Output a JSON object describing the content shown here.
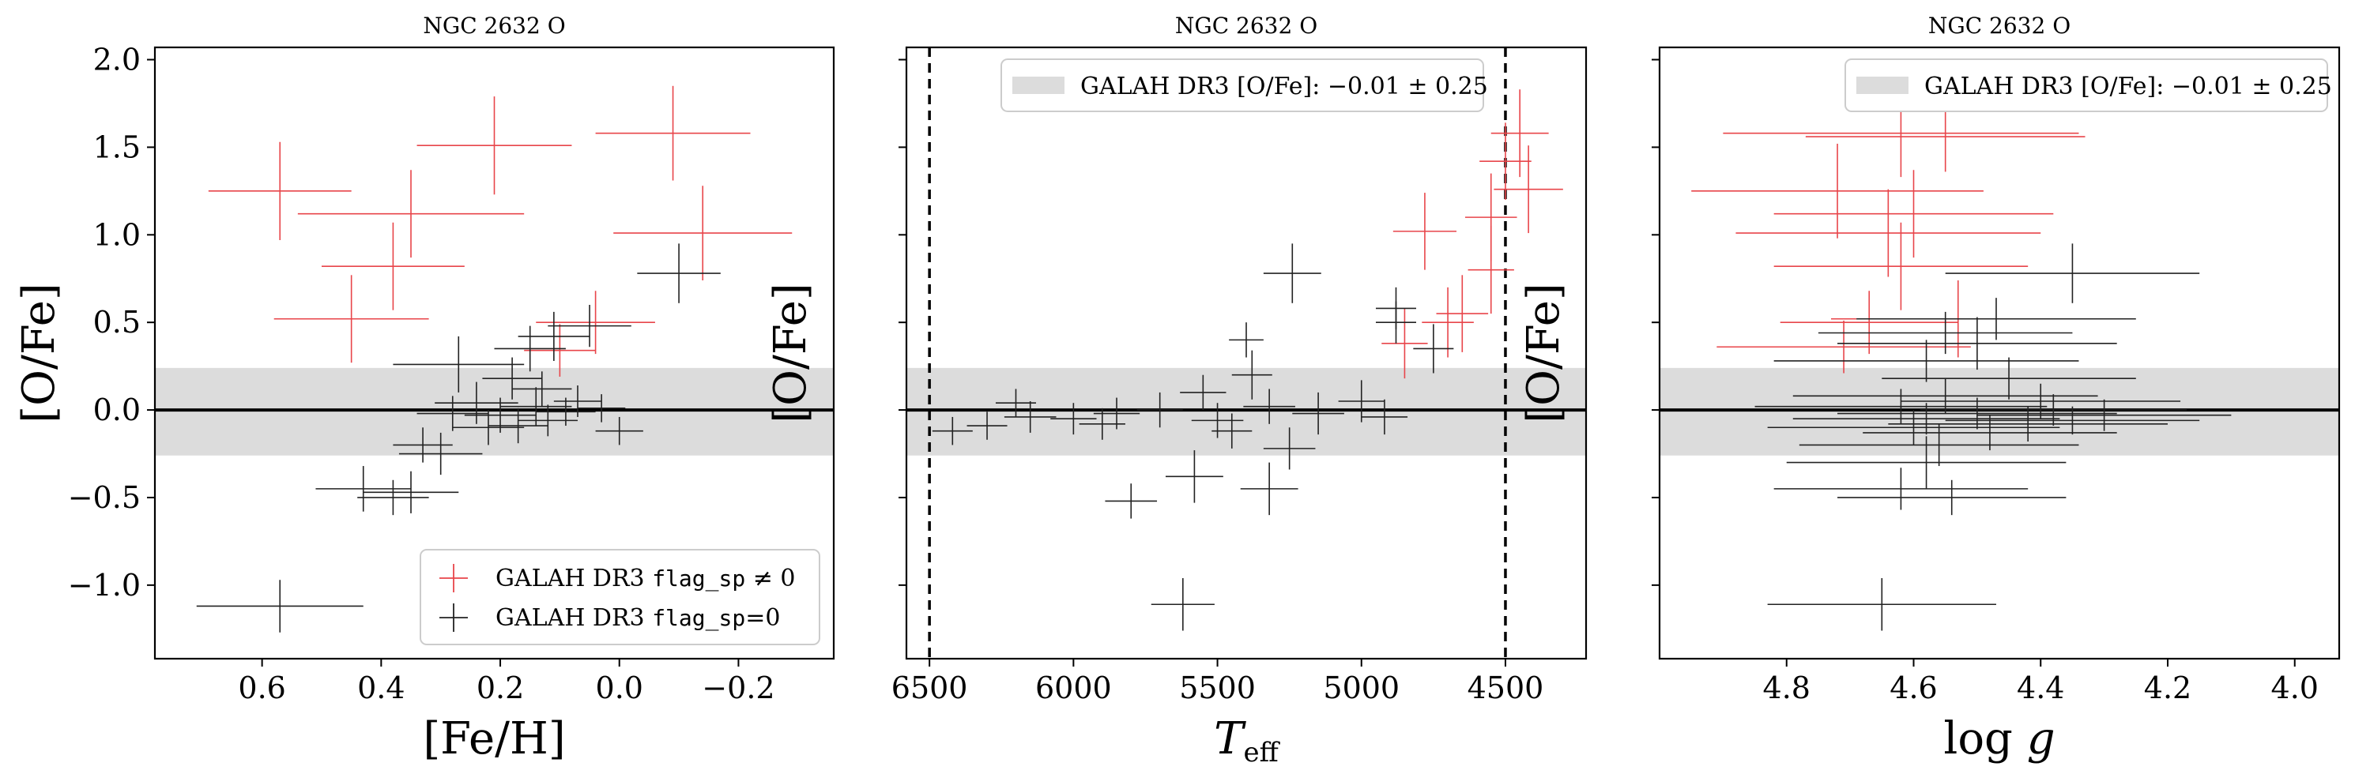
{
  "figure": {
    "background": "#ffffff"
  },
  "colors": {
    "flagged": "#e8454a",
    "unflagged": "#222222",
    "band": "#dcdcdc"
  },
  "chart_data": [
    {
      "type": "scatter",
      "title": "NGC 2632 O",
      "xlabel": "[Fe/H]",
      "ylabel": "[O/Fe]",
      "xlim": [
        0.78,
        -0.36
      ],
      "ylim": [
        -1.42,
        2.07
      ],
      "xticks": [
        0.6,
        0.4,
        0.2,
        0.0,
        -0.2
      ],
      "xtick_labels": [
        "0.6",
        "0.4",
        "0.2",
        "0.0",
        "−0.2"
      ],
      "yticks": [
        -1.0,
        -0.5,
        0.0,
        0.5,
        1.0,
        1.5,
        2.0
      ],
      "ytick_labels": [
        "−1.0",
        "−0.5",
        "0.0",
        "0.5",
        "1.0",
        "1.5",
        "2.0"
      ],
      "show_ytick_labels": true,
      "band": {
        "center": -0.01,
        "half_width": 0.25
      },
      "hline": 0.0,
      "legend": {
        "position": "lower-right",
        "entries": [
          {
            "prefix": "GALAH DR3",
            "code": "flag_sp",
            "suffix": "≠ 0",
            "series": "flagged"
          },
          {
            "prefix": "GALAH DR3",
            "code": "flag_sp",
            "suffix": "=0",
            "series": "unflagged"
          }
        ]
      },
      "series": [
        {
          "key": "flagged",
          "color": "#e8454a",
          "points": [
            {
              "x": 0.57,
              "y": 1.25,
              "xerr": 0.12,
              "yerr": 0.28
            },
            {
              "x": 0.35,
              "y": 1.12,
              "xerr": 0.19,
              "yerr": 0.25
            },
            {
              "x": 0.21,
              "y": 1.51,
              "xerr": 0.13,
              "yerr": 0.28
            },
            {
              "x": -0.09,
              "y": 1.58,
              "xerr": 0.13,
              "yerr": 0.27
            },
            {
              "x": -0.14,
              "y": 1.01,
              "xerr": 0.15,
              "yerr": 0.27
            },
            {
              "x": 0.38,
              "y": 0.82,
              "xerr": 0.12,
              "yerr": 0.25
            },
            {
              "x": 0.45,
              "y": 0.52,
              "xerr": 0.13,
              "yerr": 0.25
            },
            {
              "x": 0.04,
              "y": 0.5,
              "xerr": 0.1,
              "yerr": 0.18
            },
            {
              "x": 0.1,
              "y": 0.34,
              "xerr": 0.06,
              "yerr": 0.15
            }
          ]
        },
        {
          "key": "unflagged",
          "color": "#222222",
          "points": [
            {
              "x": -0.1,
              "y": 0.78,
              "xerr": 0.07,
              "yerr": 0.17
            },
            {
              "x": 0.05,
              "y": 0.48,
              "xerr": 0.07,
              "yerr": 0.12
            },
            {
              "x": 0.11,
              "y": 0.42,
              "xerr": 0.06,
              "yerr": 0.14
            },
            {
              "x": 0.15,
              "y": 0.35,
              "xerr": 0.06,
              "yerr": 0.13
            },
            {
              "x": 0.27,
              "y": 0.26,
              "xerr": 0.11,
              "yerr": 0.16
            },
            {
              "x": 0.18,
              "y": 0.18,
              "xerr": 0.05,
              "yerr": 0.12
            },
            {
              "x": 0.13,
              "y": 0.12,
              "xerr": 0.05,
              "yerr": 0.1
            },
            {
              "x": 0.24,
              "y": 0.04,
              "xerr": 0.07,
              "yerr": 0.12
            },
            {
              "x": 0.14,
              "y": 0.02,
              "xerr": 0.06,
              "yerr": 0.11
            },
            {
              "x": 0.07,
              "y": 0.05,
              "xerr": 0.04,
              "yerr": 0.09
            },
            {
              "x": 0.2,
              "y": -0.03,
              "xerr": 0.06,
              "yerr": 0.1
            },
            {
              "x": 0.12,
              "y": -0.06,
              "xerr": 0.05,
              "yerr": 0.09
            },
            {
              "x": 0.03,
              "y": 0.01,
              "xerr": 0.04,
              "yerr": 0.08
            },
            {
              "x": 0.28,
              "y": -0.02,
              "xerr": 0.06,
              "yerr": 0.1
            },
            {
              "x": 0.17,
              "y": -0.09,
              "xerr": 0.05,
              "yerr": 0.1
            },
            {
              "x": 0.09,
              "y": -0.01,
              "xerr": 0.05,
              "yerr": 0.08
            },
            {
              "x": 0.0,
              "y": -0.12,
              "xerr": 0.04,
              "yerr": 0.08
            },
            {
              "x": 0.22,
              "y": -0.1,
              "xerr": 0.06,
              "yerr": 0.1
            },
            {
              "x": 0.33,
              "y": -0.2,
              "xerr": 0.05,
              "yerr": 0.1
            },
            {
              "x": 0.3,
              "y": -0.25,
              "xerr": 0.07,
              "yerr": 0.12
            },
            {
              "x": 0.35,
              "y": -0.47,
              "xerr": 0.08,
              "yerr": 0.12
            },
            {
              "x": 0.43,
              "y": -0.45,
              "xerr": 0.08,
              "yerr": 0.13
            },
            {
              "x": 0.38,
              "y": -0.5,
              "xerr": 0.06,
              "yerr": 0.1
            },
            {
              "x": 0.57,
              "y": -1.12,
              "xerr": 0.14,
              "yerr": 0.15
            }
          ]
        }
      ]
    },
    {
      "type": "scatter",
      "title": "NGC 2632 O",
      "xlabel": "T_eff",
      "ylabel": "[O/Fe]",
      "xlim": [
        6580,
        4220
      ],
      "ylim": [
        -1.42,
        2.07
      ],
      "xticks": [
        6500,
        6000,
        5500,
        5000,
        4500
      ],
      "xtick_labels": [
        "6500",
        "6000",
        "5500",
        "5000",
        "4500"
      ],
      "yticks": [
        -1.0,
        -0.5,
        0.0,
        0.5,
        1.0,
        1.5,
        2.0
      ],
      "ytick_labels": [],
      "show_ytick_labels": false,
      "band": {
        "center": -0.01,
        "half_width": 0.25
      },
      "hline": 0.0,
      "vlines": [
        6500,
        4500
      ],
      "legend": {
        "position": "upper-center",
        "entries": [
          {
            "text": "GALAH DR3 [O/Fe]: −0.01 ± 0.25",
            "series": "band"
          }
        ]
      },
      "series": [
        {
          "key": "flagged",
          "color": "#e8454a",
          "points": [
            {
              "x": 4450,
              "y": 1.58,
              "xerr": 100,
              "yerr": 0.25
            },
            {
              "x": 4500,
              "y": 1.42,
              "xerr": 90,
              "yerr": 0.22
            },
            {
              "x": 4420,
              "y": 1.26,
              "xerr": 120,
              "yerr": 0.25
            },
            {
              "x": 4550,
              "y": 1.1,
              "xerr": 90,
              "yerr": 0.25
            },
            {
              "x": 4780,
              "y": 1.02,
              "xerr": 110,
              "yerr": 0.22
            },
            {
              "x": 4550,
              "y": 0.8,
              "xerr": 80,
              "yerr": 0.25
            },
            {
              "x": 4700,
              "y": 0.5,
              "xerr": 90,
              "yerr": 0.2
            },
            {
              "x": 4650,
              "y": 0.55,
              "xerr": 90,
              "yerr": 0.22
            },
            {
              "x": 4850,
              "y": 0.38,
              "xerr": 80,
              "yerr": 0.2
            }
          ]
        },
        {
          "key": "unflagged",
          "color": "#222222",
          "points": [
            {
              "x": 5240,
              "y": 0.78,
              "xerr": 100,
              "yerr": 0.17
            },
            {
              "x": 4880,
              "y": 0.58,
              "xerr": 70,
              "yerr": 0.12
            },
            {
              "x": 4880,
              "y": 0.5,
              "xerr": 70,
              "yerr": 0.12
            },
            {
              "x": 5400,
              "y": 0.4,
              "xerr": 60,
              "yerr": 0.1
            },
            {
              "x": 4750,
              "y": 0.35,
              "xerr": 70,
              "yerr": 0.14
            },
            {
              "x": 5380,
              "y": 0.2,
              "xerr": 70,
              "yerr": 0.14
            },
            {
              "x": 5550,
              "y": 0.1,
              "xerr": 80,
              "yerr": 0.1
            },
            {
              "x": 5000,
              "y": 0.05,
              "xerr": 80,
              "yerr": 0.12
            },
            {
              "x": 5150,
              "y": -0.02,
              "xerr": 90,
              "yerr": 0.12
            },
            {
              "x": 4920,
              "y": -0.04,
              "xerr": 80,
              "yerr": 0.1
            },
            {
              "x": 5320,
              "y": 0.02,
              "xerr": 90,
              "yerr": 0.1
            },
            {
              "x": 5700,
              "y": 0.0,
              "xerr": 80,
              "yerr": 0.1
            },
            {
              "x": 5850,
              "y": -0.02,
              "xerr": 80,
              "yerr": 0.09
            },
            {
              "x": 6000,
              "y": -0.05,
              "xerr": 80,
              "yerr": 0.09
            },
            {
              "x": 6150,
              "y": -0.04,
              "xerr": 90,
              "yerr": 0.09
            },
            {
              "x": 6200,
              "y": 0.04,
              "xerr": 70,
              "yerr": 0.08
            },
            {
              "x": 6300,
              "y": -0.09,
              "xerr": 70,
              "yerr": 0.08
            },
            {
              "x": 6420,
              "y": -0.12,
              "xerr": 70,
              "yerr": 0.08
            },
            {
              "x": 5900,
              "y": -0.08,
              "xerr": 80,
              "yerr": 0.09
            },
            {
              "x": 5500,
              "y": -0.06,
              "xerr": 90,
              "yerr": 0.1
            },
            {
              "x": 5450,
              "y": -0.12,
              "xerr": 70,
              "yerr": 0.1
            },
            {
              "x": 5250,
              "y": -0.22,
              "xerr": 90,
              "yerr": 0.12
            },
            {
              "x": 5580,
              "y": -0.38,
              "xerr": 100,
              "yerr": 0.15
            },
            {
              "x": 5320,
              "y": -0.45,
              "xerr": 100,
              "yerr": 0.15
            },
            {
              "x": 5800,
              "y": -0.52,
              "xerr": 90,
              "yerr": 0.1
            },
            {
              "x": 5620,
              "y": -1.11,
              "xerr": 110,
              "yerr": 0.15
            }
          ]
        }
      ]
    },
    {
      "type": "scatter",
      "title": "NGC 2632 O",
      "xlabel": "log g",
      "ylabel": "[O/Fe]",
      "xlim": [
        5.0,
        3.93
      ],
      "ylim": [
        -1.42,
        2.07
      ],
      "xticks": [
        4.8,
        4.6,
        4.4,
        4.2,
        4.0
      ],
      "xtick_labels": [
        "4.8",
        "4.6",
        "4.4",
        "4.2",
        "4.0"
      ],
      "yticks": [
        -1.0,
        -0.5,
        0.0,
        0.5,
        1.0,
        1.5,
        2.0
      ],
      "ytick_labels": [],
      "show_ytick_labels": false,
      "band": {
        "center": -0.01,
        "half_width": 0.25
      },
      "hline": 0.0,
      "legend": {
        "position": "upper-right",
        "entries": [
          {
            "text": "GALAH DR3 [O/Fe]: −0.01 ± 0.25",
            "series": "band"
          }
        ]
      },
      "series": [
        {
          "key": "flagged",
          "color": "#e8454a",
          "points": [
            {
              "x": 4.62,
              "y": 1.58,
              "xerr": 0.28,
              "yerr": 0.25
            },
            {
              "x": 4.55,
              "y": 1.56,
              "xerr": 0.22,
              "yerr": 0.2
            },
            {
              "x": 4.72,
              "y": 1.25,
              "xerr": 0.23,
              "yerr": 0.27
            },
            {
              "x": 4.6,
              "y": 1.12,
              "xerr": 0.22,
              "yerr": 0.25
            },
            {
              "x": 4.64,
              "y": 1.01,
              "xerr": 0.24,
              "yerr": 0.25
            },
            {
              "x": 4.62,
              "y": 0.82,
              "xerr": 0.2,
              "yerr": 0.25
            },
            {
              "x": 4.53,
              "y": 0.52,
              "xerr": 0.2,
              "yerr": 0.22
            },
            {
              "x": 4.67,
              "y": 0.5,
              "xerr": 0.14,
              "yerr": 0.18
            },
            {
              "x": 4.71,
              "y": 0.36,
              "xerr": 0.2,
              "yerr": 0.15
            }
          ]
        },
        {
          "key": "unflagged",
          "color": "#222222",
          "points": [
            {
              "x": 4.35,
              "y": 0.78,
              "xerr": 0.2,
              "yerr": 0.17
            },
            {
              "x": 4.47,
              "y": 0.52,
              "xerr": 0.22,
              "yerr": 0.12
            },
            {
              "x": 4.55,
              "y": 0.44,
              "xerr": 0.2,
              "yerr": 0.12
            },
            {
              "x": 4.5,
              "y": 0.38,
              "xerr": 0.22,
              "yerr": 0.15
            },
            {
              "x": 4.58,
              "y": 0.28,
              "xerr": 0.24,
              "yerr": 0.12
            },
            {
              "x": 4.45,
              "y": 0.18,
              "xerr": 0.2,
              "yerr": 0.12
            },
            {
              "x": 4.55,
              "y": 0.08,
              "xerr": 0.24,
              "yerr": 0.1
            },
            {
              "x": 4.4,
              "y": 0.05,
              "xerr": 0.22,
              "yerr": 0.1
            },
            {
              "x": 4.62,
              "y": 0.02,
              "xerr": 0.23,
              "yerr": 0.1
            },
            {
              "x": 4.38,
              "y": 0.0,
              "xerr": 0.21,
              "yerr": 0.09
            },
            {
              "x": 4.5,
              "y": -0.02,
              "xerr": 0.22,
              "yerr": 0.09
            },
            {
              "x": 4.3,
              "y": -0.03,
              "xerr": 0.2,
              "yerr": 0.09
            },
            {
              "x": 4.58,
              "y": -0.05,
              "xerr": 0.21,
              "yerr": 0.09
            },
            {
              "x": 4.42,
              "y": -0.08,
              "xerr": 0.22,
              "yerr": 0.1
            },
            {
              "x": 4.6,
              "y": -0.1,
              "xerr": 0.23,
              "yerr": 0.1
            },
            {
              "x": 4.35,
              "y": -0.06,
              "xerr": 0.2,
              "yerr": 0.08
            },
            {
              "x": 4.48,
              "y": -0.13,
              "xerr": 0.2,
              "yerr": 0.1
            },
            {
              "x": 4.56,
              "y": -0.2,
              "xerr": 0.22,
              "yerr": 0.12
            },
            {
              "x": 4.58,
              "y": -0.3,
              "xerr": 0.22,
              "yerr": 0.15
            },
            {
              "x": 4.62,
              "y": -0.45,
              "xerr": 0.2,
              "yerr": 0.12
            },
            {
              "x": 4.54,
              "y": -0.5,
              "xerr": 0.18,
              "yerr": 0.1
            },
            {
              "x": 4.65,
              "y": -1.11,
              "xerr": 0.18,
              "yerr": 0.15
            }
          ]
        }
      ]
    }
  ]
}
